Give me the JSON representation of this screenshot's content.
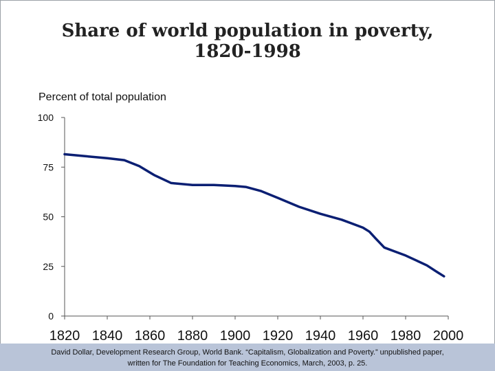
{
  "chart_data": {
    "type": "line",
    "title_line1": "Share of world population in poverty,",
    "title_line2": "1820-1998",
    "ylabel": "Percent of total population",
    "xlabel": "",
    "xlim": [
      1820,
      2000
    ],
    "ylim": [
      0,
      100
    ],
    "x_ticks": [
      1820,
      1840,
      1860,
      1880,
      1900,
      1920,
      1940,
      1960,
      1980,
      2000
    ],
    "y_ticks": [
      0,
      25,
      50,
      75,
      100
    ],
    "line_color": "#0b1f73",
    "series": [
      {
        "x": [
          1820,
          1830,
          1840,
          1848,
          1855,
          1862,
          1870,
          1880,
          1890,
          1900,
          1905,
          1912,
          1920,
          1930,
          1940,
          1950,
          1960,
          1963,
          1966,
          1970,
          1975,
          1980,
          1985,
          1990,
          1995,
          1998
        ],
        "y": [
          81.5,
          80.5,
          79.5,
          78.5,
          75.5,
          71,
          67,
          66,
          66,
          65.5,
          65,
          63,
          59.5,
          55,
          51.5,
          48.5,
          44.5,
          42.5,
          39,
          34.5,
          32.5,
          30.5,
          28,
          25.5,
          22,
          20
        ]
      }
    ]
  },
  "source_note": {
    "line1": "David Dollar, Development Research Group, World Bank. “Capitalism, Globalization and Poverty.” unpublished paper,",
    "line2": "written for The Foundation for Teaching Economics, March, 2003, p. 25."
  }
}
